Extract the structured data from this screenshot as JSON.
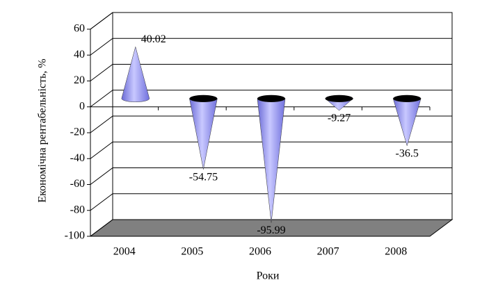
{
  "chart_data": {
    "type": "cone",
    "x_label": "Роки",
    "y_label": "Економічна рентабельність, %",
    "categories": [
      "2004",
      "2005",
      "2006",
      "2007",
      "2008"
    ],
    "values": [
      40.02,
      -54.75,
      -95.99,
      -9.27,
      -36.5
    ],
    "color": "#9999ff",
    "ylim": [
      -100,
      60
    ],
    "yticks": [
      -100,
      -80,
      -60,
      -40,
      -20,
      0,
      20,
      40,
      60
    ],
    "grid": true
  }
}
